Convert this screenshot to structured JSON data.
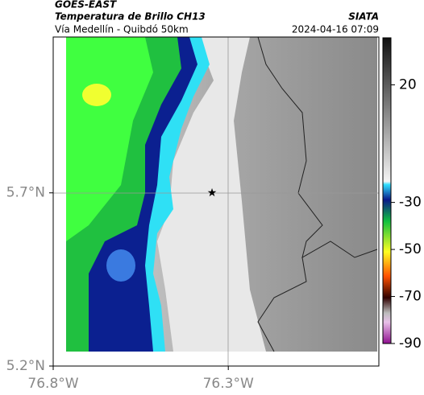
{
  "header": {
    "source": "GOES-EAST",
    "title": "Temperatura de Brillo CH13",
    "brand": "SIATA",
    "route": "Vía Medellín - Quibdó 50km",
    "timestamp": "2024-04-16 07:09"
  },
  "map": {
    "xlim": [
      -76.8,
      -75.87
    ],
    "ylim": [
      5.2,
      6.15
    ],
    "xticks": [
      {
        "value": -76.8,
        "label": "76.8°W"
      },
      {
        "value": -76.3,
        "label": "76.3°W"
      }
    ],
    "yticks": [
      {
        "value": 5.2,
        "label": "5.2°N"
      },
      {
        "value": 5.7,
        "label": "5.7°N"
      }
    ]
  },
  "colorbar": {
    "lim": [
      40,
      -90
    ],
    "ticks": [
      20,
      -30,
      -50,
      -70,
      -90
    ]
  }
}
